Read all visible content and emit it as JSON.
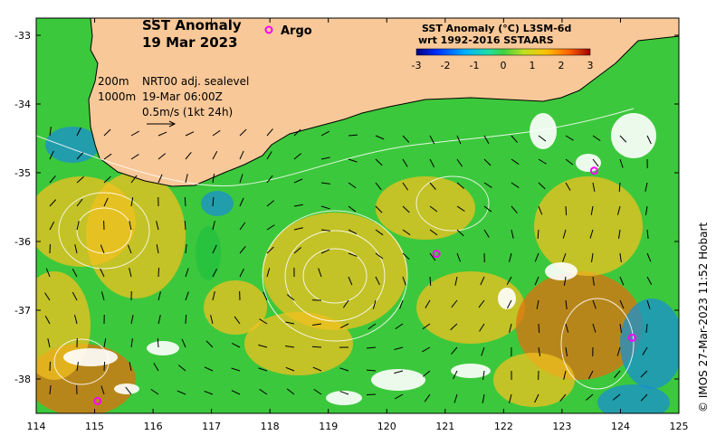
{
  "title_line1": "SST Anomaly",
  "title_line2": "19 Mar 2023",
  "legend": {
    "argo_label": "Argo"
  },
  "colorbar": {
    "title_line1": "SST Anomaly (°C) L3SM-6d",
    "title_line2": "wrt 1992-2016 SSTAARS",
    "ticks": [
      "-3",
      "-2",
      "-1",
      "0",
      "1",
      "2",
      "3"
    ]
  },
  "currents_note": {
    "depth_200": "200m",
    "depth_1000": "1000m",
    "source": "NRT00 adj. sealevel",
    "time": "19-Mar 06:00Z",
    "scale": "0.5m/s (1kt 24h)"
  },
  "axes": {
    "x_ticks": [
      "114",
      "115",
      "116",
      "117",
      "118",
      "119",
      "120",
      "121",
      "122",
      "123",
      "124",
      "125"
    ],
    "y_ticks": [
      "-33",
      "-34",
      "-35",
      "-36",
      "-37",
      "-38"
    ]
  },
  "credit": "© IMOS 27-Mar-2023 11:52 Hobart",
  "colors": {
    "land": "#f8c898",
    "argo": "#ff00ff",
    "anom_cold": "#1a8fd0",
    "anom_zero": "#22c040",
    "anom_warm": "#f0c020",
    "anom_hot": "#e07010"
  },
  "argo_floats": [
    {
      "lon": 115.05,
      "lat": -38.32
    },
    {
      "lon": 120.85,
      "lat": -36.18
    },
    {
      "lon": 123.55,
      "lat": -34.97
    },
    {
      "lon": 124.2,
      "lat": -37.4
    }
  ]
}
